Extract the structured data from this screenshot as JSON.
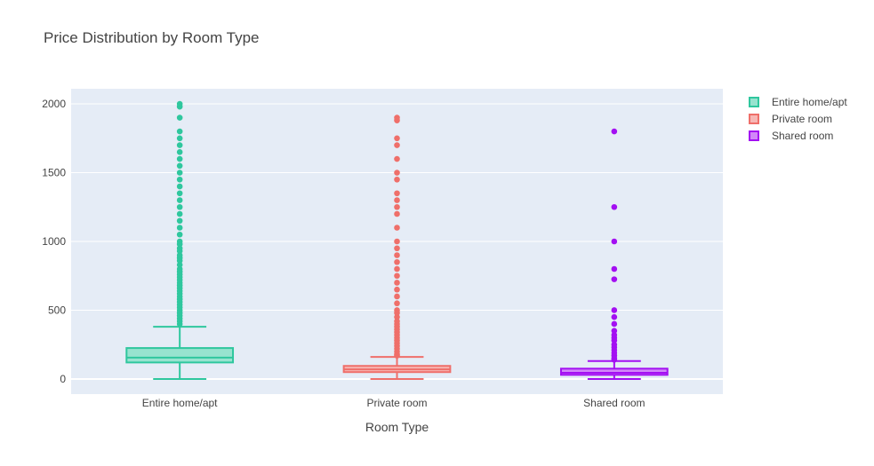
{
  "chart_data": {
    "type": "box",
    "title": "Price Distribution by Room Type",
    "xlabel": "Room Type",
    "ylabel": "",
    "ylim": [
      -110,
      2110
    ],
    "yticks": [
      0,
      500,
      1000,
      1500,
      2000
    ],
    "grid": true,
    "legend": "right",
    "categories": [
      "Entire home/apt",
      "Private room",
      "Shared room"
    ],
    "series": [
      {
        "name": "Entire home/apt",
        "color": "#2fc79e",
        "fill": "#97e3cf",
        "min": 0,
        "q1": 120,
        "median": 155,
        "q3": 225,
        "upper_fence": 380,
        "outliers": [
          400,
          420,
          440,
          460,
          480,
          500,
          520,
          540,
          560,
          580,
          600,
          620,
          640,
          660,
          680,
          700,
          720,
          740,
          760,
          780,
          800,
          830,
          860,
          880,
          900,
          930,
          950,
          980,
          1000,
          1050,
          1100,
          1150,
          1200,
          1250,
          1300,
          1350,
          1400,
          1450,
          1500,
          1550,
          1600,
          1650,
          1700,
          1750,
          1800,
          1900,
          1980,
          2000
        ]
      },
      {
        "name": "Private room",
        "color": "#ef6f6a",
        "fill": "#f7b7b4",
        "min": 0,
        "q1": 50,
        "median": 70,
        "q3": 95,
        "upper_fence": 160,
        "outliers": [
          170,
          180,
          200,
          220,
          240,
          260,
          280,
          300,
          320,
          340,
          360,
          380,
          400,
          420,
          450,
          480,
          500,
          550,
          600,
          650,
          700,
          750,
          800,
          850,
          900,
          950,
          1000,
          1100,
          1200,
          1250,
          1300,
          1350,
          1450,
          1500,
          1600,
          1700,
          1750,
          1880,
          1900
        ]
      },
      {
        "name": "Shared room",
        "color": "#a30ff2",
        "fill": "#d187f8",
        "min": 0,
        "q1": 30,
        "median": 45,
        "q3": 75,
        "upper_fence": 130,
        "outliers": [
          140,
          150,
          170,
          190,
          210,
          230,
          250,
          280,
          300,
          320,
          350,
          400,
          450,
          500,
          725,
          800,
          1000,
          1250,
          1800
        ]
      }
    ]
  }
}
